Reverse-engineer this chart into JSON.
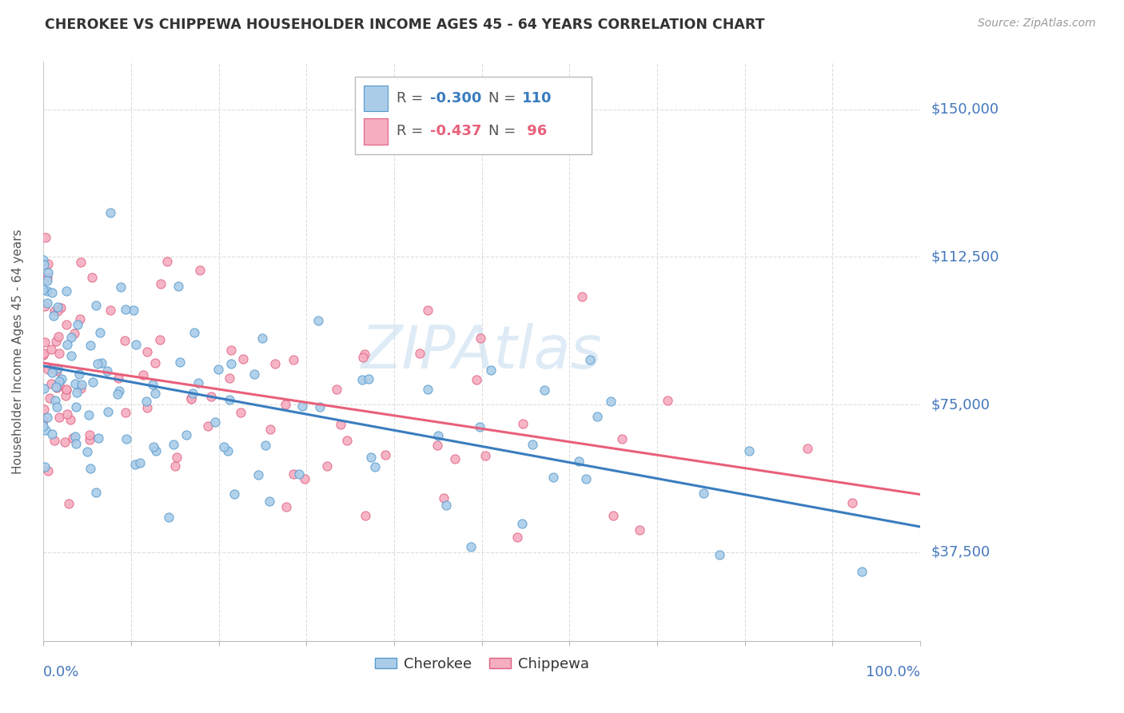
{
  "title": "CHEROKEE VS CHIPPEWA HOUSEHOLDER INCOME AGES 45 - 64 YEARS CORRELATION CHART",
  "source": "Source: ZipAtlas.com",
  "ylabel": "Householder Income Ages 45 - 64 years",
  "ytick_labels": [
    "$37,500",
    "$75,000",
    "$112,500",
    "$150,000"
  ],
  "ytick_values": [
    37500,
    75000,
    112500,
    150000
  ],
  "ylim": [
    15000,
    162000
  ],
  "xlim": [
    0,
    1
  ],
  "cherokee_R": -0.3,
  "cherokee_N": 110,
  "chippewa_R": -0.437,
  "chippewa_N": 96,
  "cherokee_color": "#aacce8",
  "chippewa_color": "#f5adc0",
  "cherokee_edge_color": "#5599cc",
  "chippewa_edge_color": "#e06080",
  "cherokee_line_color": "#3a7dbf",
  "chippewa_line_color": "#e8607a",
  "axis_label_color": "#4477bb",
  "watermark_color": "#c8dff0",
  "grid_color": "#dddddd",
  "title_color": "#333333",
  "source_color": "#999999"
}
